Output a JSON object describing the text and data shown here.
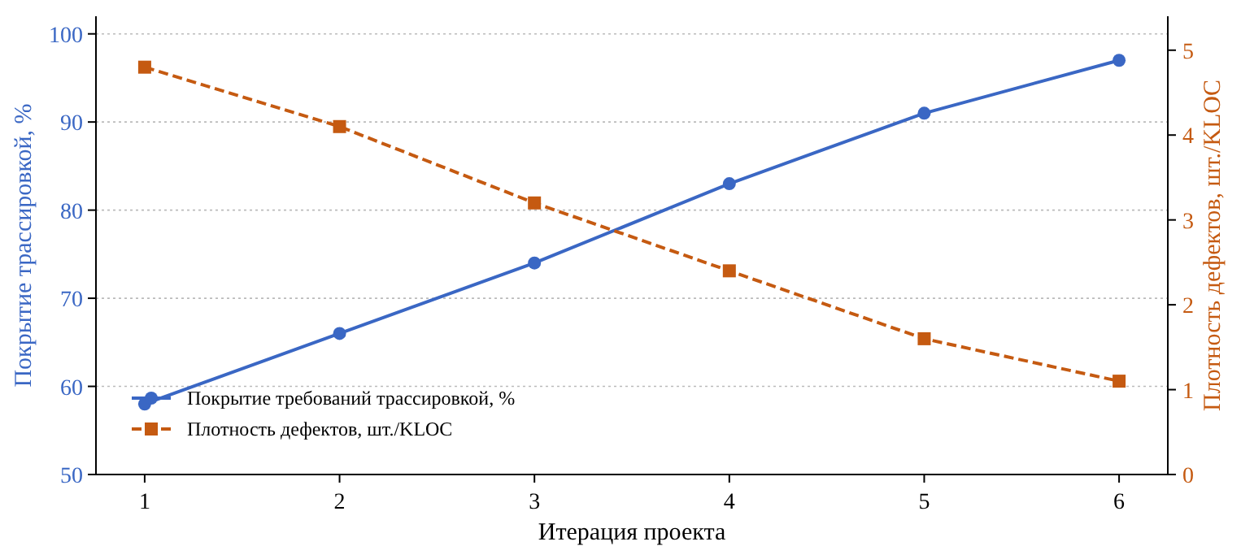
{
  "chart_data": {
    "type": "line",
    "xlabel": "Итерация проекта",
    "ylabel": "Покрытие трассировкой, %",
    "y2label": "Плотность дефектов, шт./KLOC",
    "x": [
      1,
      2,
      3,
      4,
      5,
      6
    ],
    "xlim": [
      0.75,
      6.25
    ],
    "xticks": [
      1,
      2,
      3,
      4,
      5,
      6
    ],
    "ylim": [
      50,
      102
    ],
    "yticks": [
      50,
      60,
      70,
      80,
      90,
      100
    ],
    "y2lim": [
      0,
      5.4
    ],
    "y2ticks": [
      0,
      1,
      2,
      3,
      4,
      5
    ],
    "grid": "y",
    "legend": "bottom left",
    "series": [
      {
        "name": "Покрытие требований трассировкой, %",
        "color": "#3a67c4",
        "values": [
          58,
          66,
          74,
          83,
          91,
          97
        ],
        "marker": "circle",
        "line_style": "solid"
      },
      {
        "name": "Плотность дефектов, шт./KLOC",
        "color": "#c55a11",
        "values": [
          4.8,
          4.1,
          3.2,
          2.4,
          1.6,
          1.1
        ],
        "axis": "y2",
        "marker": "square",
        "line_style": "dashed"
      }
    ]
  }
}
